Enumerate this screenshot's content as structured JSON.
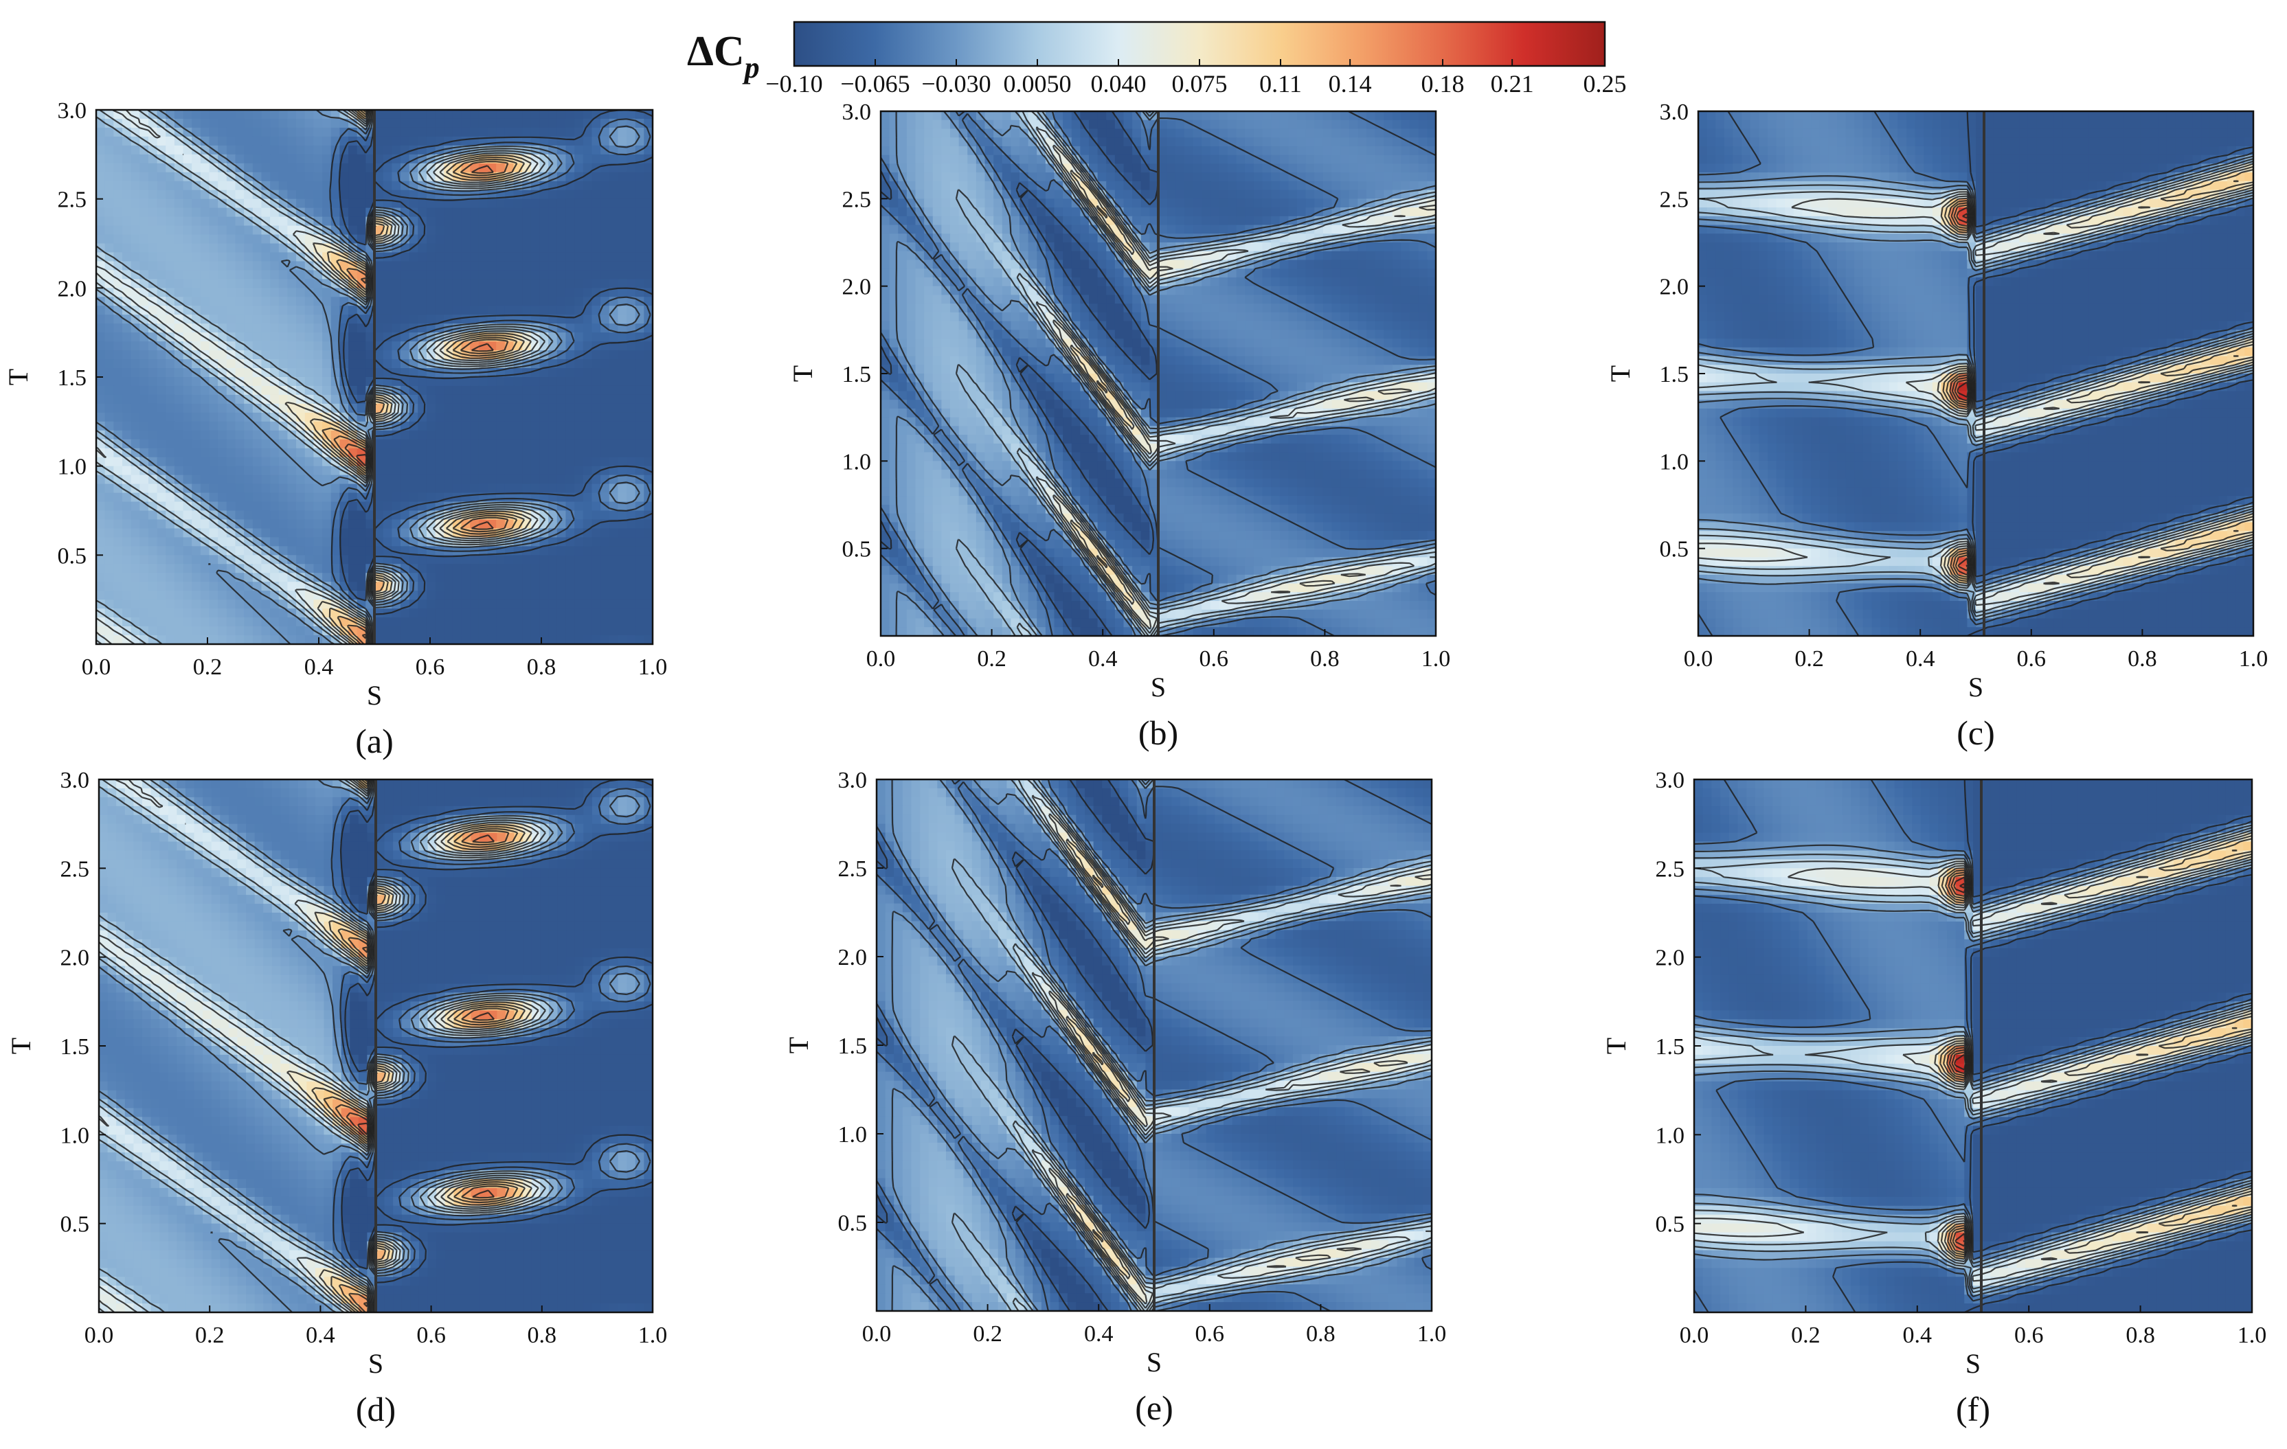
{
  "chart_data": {
    "type": "heatmap",
    "colorbar": {
      "title": "ΔC",
      "title_subscript": "p",
      "range": [
        -0.1,
        0.25
      ],
      "tick_labels": [
        "−0.10",
        "−0.065",
        "−0.030",
        "0.0050",
        "0.040",
        "0.075",
        "0.11",
        "0.14",
        "0.18",
        "0.21",
        "0.25"
      ],
      "tick_values": [
        -0.1,
        -0.065,
        -0.03,
        0.005,
        0.04,
        0.075,
        0.11,
        0.14,
        0.18,
        0.21,
        0.25
      ],
      "colors": [
        "#2d4f86",
        "#3d6aa6",
        "#6d98c6",
        "#a9cbe3",
        "#dcecf4",
        "#f4eac8",
        "#f9cf8d",
        "#f3a068",
        "#e56b4a",
        "#d02f2a",
        "#a0201c"
      ]
    },
    "panels": [
      {
        "id": "a",
        "label": "(a)",
        "pattern": "A",
        "xlabel": "S",
        "ylabel": "T",
        "xlim": [
          0,
          1
        ],
        "ylim": [
          0,
          3
        ],
        "xticks": [
          "0.0",
          "0.2",
          "0.4",
          "0.6",
          "0.8",
          "1.0"
        ],
        "yticks": [
          "0.5",
          "1.0",
          "1.5",
          "2.0",
          "2.5",
          "3.0"
        ]
      },
      {
        "id": "b",
        "label": "(b)",
        "pattern": "B",
        "xlabel": "S",
        "ylabel": "T",
        "xlim": [
          0,
          1
        ],
        "ylim": [
          0,
          3
        ],
        "xticks": [
          "0.0",
          "0.2",
          "0.4",
          "0.6",
          "0.8",
          "1.0"
        ],
        "yticks": [
          "0.5",
          "1.0",
          "1.5",
          "2.0",
          "2.5",
          "3.0"
        ]
      },
      {
        "id": "c",
        "label": "(c)",
        "pattern": "C",
        "xlabel": "S",
        "ylabel": "T",
        "xlim": [
          0,
          1
        ],
        "ylim": [
          0,
          3
        ],
        "xticks": [
          "0.0",
          "0.2",
          "0.4",
          "0.6",
          "0.8",
          "1.0"
        ],
        "yticks": [
          "0.5",
          "1.0",
          "1.5",
          "2.0",
          "2.5",
          "3.0"
        ]
      },
      {
        "id": "d",
        "label": "(d)",
        "pattern": "A",
        "xlabel": "S",
        "ylabel": "T",
        "xlim": [
          0,
          1
        ],
        "ylim": [
          0,
          3
        ],
        "xticks": [
          "0.0",
          "0.2",
          "0.4",
          "0.6",
          "0.8",
          "1.0"
        ],
        "yticks": [
          "0.5",
          "1.0",
          "1.5",
          "2.0",
          "2.5",
          "3.0"
        ]
      },
      {
        "id": "e",
        "label": "(e)",
        "pattern": "B",
        "xlabel": "S",
        "ylabel": "T",
        "xlim": [
          0,
          1
        ],
        "ylim": [
          0,
          3
        ],
        "xticks": [
          "0.0",
          "0.2",
          "0.4",
          "0.6",
          "0.8",
          "1.0"
        ],
        "yticks": [
          "0.5",
          "1.0",
          "1.5",
          "2.0",
          "2.5",
          "3.0"
        ]
      },
      {
        "id": "f",
        "label": "(f)",
        "pattern": "C",
        "xlabel": "S",
        "ylabel": "T",
        "xlim": [
          0,
          1
        ],
        "ylim": [
          0,
          3
        ],
        "xticks": [
          "0.0",
          "0.2",
          "0.4",
          "0.6",
          "0.8",
          "1.0"
        ],
        "yticks": [
          "0.5",
          "1.0",
          "1.5",
          "2.0",
          "2.5",
          "3.0"
        ]
      }
    ]
  }
}
